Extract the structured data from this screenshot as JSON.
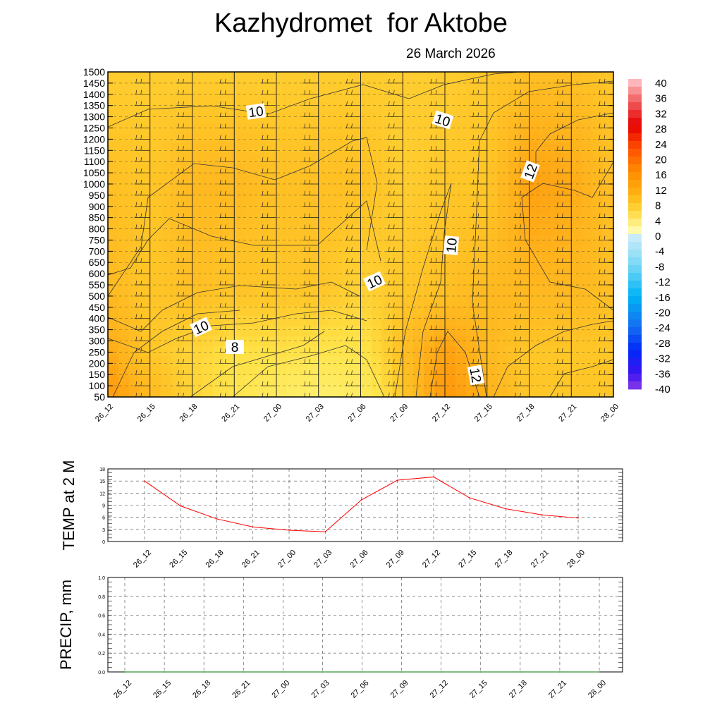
{
  "title": "Kazhydromet  for Aktobe",
  "date": "26 March 2026",
  "colors": {
    "background": "#ffffff",
    "temp_line": "#ff0000",
    "precip_line": "#007a00",
    "field_light": "#ffe95a",
    "field_mid": "#ffc52a",
    "field_dark": "#ff9d0c"
  },
  "chart_data": [
    {
      "type": "heatmap",
      "name": "vertical cross-section (temperature field with wind barbs and contours)",
      "x_ticks": [
        "26_12",
        "26_15",
        "26_18",
        "26_21",
        "27_00",
        "27_03",
        "27_06",
        "27_09",
        "27_12",
        "27_15",
        "27_18",
        "27_21",
        "28_00"
      ],
      "y_ticks": [
        1500,
        1450,
        1400,
        1350,
        1300,
        1250,
        1200,
        1150,
        1100,
        1050,
        1000,
        950,
        900,
        850,
        800,
        750,
        700,
        650,
        600,
        550,
        500,
        450,
        400,
        350,
        300,
        250,
        200,
        150,
        100,
        50
      ],
      "ylim": [
        50,
        1500
      ],
      "colorbar": {
        "labels": [
          40,
          36,
          32,
          28,
          24,
          20,
          16,
          12,
          8,
          4,
          0,
          -4,
          -8,
          -12,
          -16,
          -20,
          -24,
          -28,
          -32,
          -36,
          -40
        ],
        "range": [
          -40,
          40
        ]
      },
      "contour_labels": [
        {
          "text": "10",
          "x": "26_21",
          "y": 1340
        },
        {
          "text": "10",
          "x": "27_12",
          "y": 1310
        },
        {
          "text": "12",
          "x": "27_18",
          "y": 1060
        },
        {
          "text": "10",
          "x": "27_12",
          "y": 700
        },
        {
          "text": "10",
          "x": "27_06",
          "y": 540
        },
        {
          "text": "10",
          "x": "26_18",
          "y": 350
        },
        {
          "text": "8",
          "x": "26_21",
          "y": 260
        },
        {
          "text": "12",
          "x": "27_15",
          "y": 140
        }
      ],
      "field_samples": {
        "x": [
          "26_12",
          "26_15",
          "26_18",
          "26_21",
          "27_00",
          "27_03",
          "27_06",
          "27_09",
          "27_12",
          "27_15",
          "27_18",
          "27_21",
          "28_00"
        ],
        "levels": [
          1500,
          1000,
          500,
          250,
          50
        ],
        "values": [
          [
            9.5,
            9.5,
            9.5,
            9.5,
            9.5,
            9.5,
            9.5,
            9.5,
            9.5,
            10,
            10.5,
            10.5,
            10
          ],
          [
            10.5,
            10,
            11,
            11,
            10.5,
            10.5,
            10.5,
            9.5,
            10,
            10,
            12.5,
            12,
            10.5
          ],
          [
            11,
            10,
            10.5,
            10,
            10,
            10,
            9,
            10,
            10.5,
            11,
            11,
            11,
            10.5
          ],
          [
            12,
            10,
            9,
            8,
            8,
            7.5,
            7.5,
            10.5,
            12.5,
            11,
            10,
            10,
            10
          ],
          [
            13,
            11,
            9,
            7.5,
            6,
            5,
            6,
            10,
            13,
            11.5,
            10,
            10,
            10
          ]
        ]
      }
    },
    {
      "type": "line",
      "ylabel": "TEMP at 2 M",
      "categories": [
        "26_12",
        "26_15",
        "26_18",
        "26_21",
        "27_00",
        "27_03",
        "27_06",
        "27_09",
        "27_12",
        "27_15",
        "27_18",
        "27_21",
        "28_00"
      ],
      "values": [
        15.0,
        8.8,
        5.6,
        3.6,
        2.8,
        2.4,
        10.3,
        15.2,
        16.0,
        10.8,
        8.1,
        6.6,
        5.8
      ],
      "ylim": [
        0,
        18
      ],
      "y_ticks": [
        0,
        3,
        6,
        9,
        12,
        15,
        18
      ],
      "grid": true
    },
    {
      "type": "line",
      "ylabel": "PRECIP, mm",
      "categories": [
        "26_12",
        "26_15",
        "26_18",
        "26_21",
        "27_00",
        "27_03",
        "27_06",
        "27_09",
        "27_12",
        "27_15",
        "27_18",
        "27_21",
        "28_00"
      ],
      "values": [
        0,
        0,
        0,
        0,
        0,
        0,
        0,
        0,
        0,
        0,
        0,
        0,
        0
      ],
      "ylim": [
        0,
        1.0
      ],
      "y_ticks": [
        "0.0",
        "0.2",
        "0.4",
        "0.6",
        "0.8",
        "1.0"
      ],
      "grid": true
    }
  ]
}
